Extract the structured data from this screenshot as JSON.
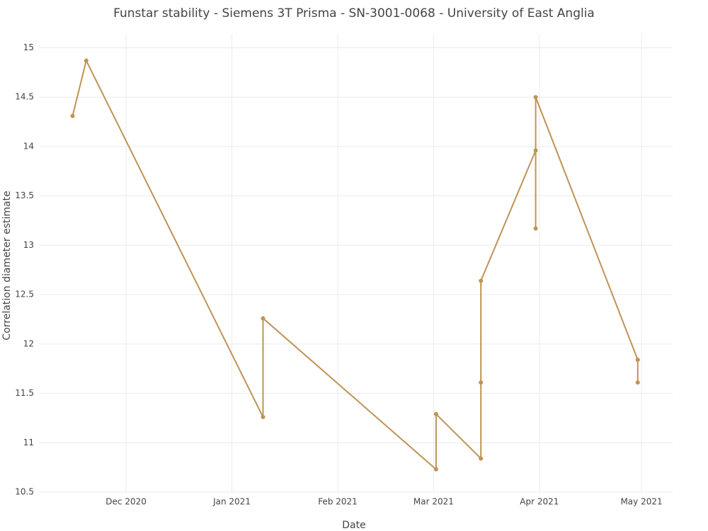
{
  "chart_data": {
    "type": "line",
    "title": "Funstar stability - Siemens 3T Prisma - SN-3001-0068 - University of East Anglia",
    "x_label": "Date",
    "y_label": "Correlation diameter estimate",
    "series": [
      {
        "color": "#bf9356",
        "x": [
          2020.872,
          2020.883,
          2021.025,
          2021.025,
          2021.164,
          2021.164,
          2021.2,
          2021.2,
          2021.2,
          2021.244,
          2021.244,
          2021.244,
          2021.326,
          2021.326
        ],
        "values": [
          14.31,
          14.87,
          11.26,
          12.26,
          10.73,
          11.29,
          10.84,
          11.61,
          12.64,
          13.96,
          13.17,
          14.5,
          11.84,
          11.61
        ]
      }
    ],
    "xlim": [
      2020.845,
      2021.354
    ],
    "xticks": [
      {
        "value": 2020.915,
        "label": "Dec 2020"
      },
      {
        "value": 2021.0,
        "label": "Jan 2021"
      },
      {
        "value": 2021.085,
        "label": "Feb 2021"
      },
      {
        "value": 2021.162,
        "label": "Mar 2021"
      },
      {
        "value": 2021.247,
        "label": "Apr 2021"
      },
      {
        "value": 2021.329,
        "label": "May 2021"
      }
    ],
    "ylim": [
      10.5,
      15.14
    ],
    "yticks": [
      10.5,
      11,
      11.5,
      12,
      12.5,
      13,
      13.5,
      14,
      14.5,
      15
    ],
    "grid": true
  }
}
